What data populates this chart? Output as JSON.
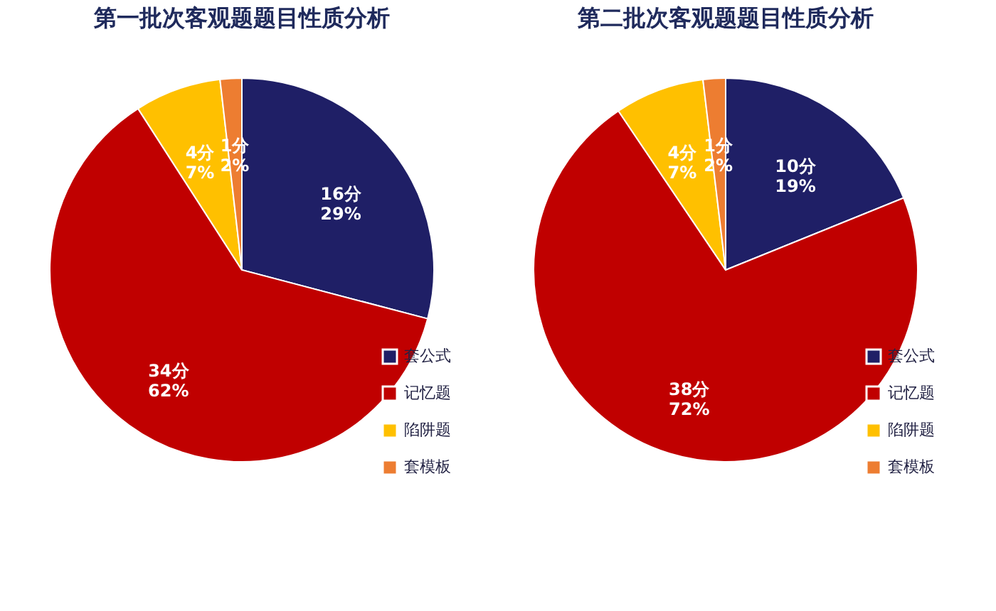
{
  "chart_data": [
    {
      "type": "pie",
      "title": "第一批次客观题题目性质分析",
      "categories": [
        "套公式",
        "记忆题",
        "陷阱题",
        "套模板"
      ],
      "values": [
        16,
        34,
        4,
        1
      ],
      "colors": [
        "#1f1f66",
        "#c00000",
        "#ffc000",
        "#ed7d31"
      ],
      "value_labels": [
        "16分\n29%",
        "34分\n62%",
        "4分\n7%",
        "1分\n2%"
      ],
      "legend": "bottom right"
    },
    {
      "type": "pie",
      "title": "第二批次客观题题目性质分析",
      "categories": [
        "套公式",
        "记忆题",
        "陷阱题",
        "套模板"
      ],
      "values": [
        10,
        38,
        4,
        1
      ],
      "colors": [
        "#1f1f66",
        "#c00000",
        "#ffc000",
        "#ed7d31"
      ],
      "value_labels": [
        "10分\n19%",
        "38分\n72%",
        "4分\n7%",
        "1分\n2%"
      ],
      "legend": "bottom right"
    }
  ]
}
